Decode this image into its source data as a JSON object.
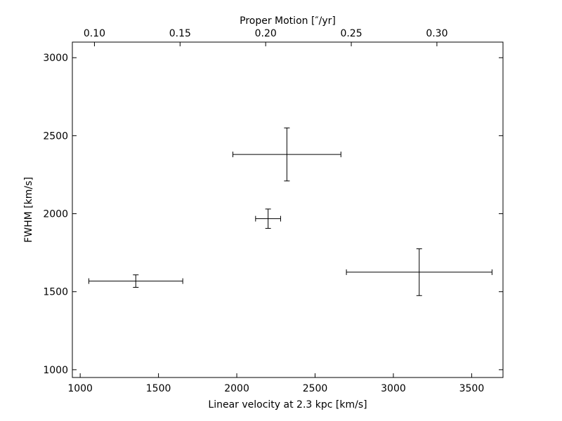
{
  "chart_data": {
    "type": "scatter",
    "xlabel": "Linear velocity at 2.3 kpc [km/s]",
    "ylabel": "FWHM [km/s]",
    "top_xlabel": "Proper Motion [″/yr]",
    "xlim": [
      950,
      3700
    ],
    "ylim": [
      950,
      3100
    ],
    "top_xlim": [
      0.0871,
      0.3386
    ],
    "x_ticks": [
      1000,
      1500,
      2000,
      2500,
      3000,
      3500
    ],
    "y_ticks": [
      1000,
      1500,
      2000,
      2500,
      3000
    ],
    "top_ticks": [
      0.1,
      0.15,
      0.2,
      0.25,
      0.3
    ],
    "x_tick_labels": [
      "1000",
      "1500",
      "2000",
      "2500",
      "3000",
      "3500"
    ],
    "y_tick_labels": [
      "1000",
      "1500",
      "2000",
      "2500",
      "3000"
    ],
    "top_tick_labels": [
      "0.10",
      "0.15",
      "0.20",
      "0.25",
      "0.30"
    ],
    "grid": false,
    "points": [
      {
        "x": 1355,
        "y": 1568,
        "xerr": 300,
        "yerr": 40
      },
      {
        "x": 2320,
        "y": 2380,
        "xerr": 345,
        "yerr": 170
      },
      {
        "x": 2200,
        "y": 1968,
        "xerr": 80,
        "yerr": 62
      },
      {
        "x": 3165,
        "y": 1625,
        "xerr": 465,
        "yerr": 150
      }
    ]
  }
}
